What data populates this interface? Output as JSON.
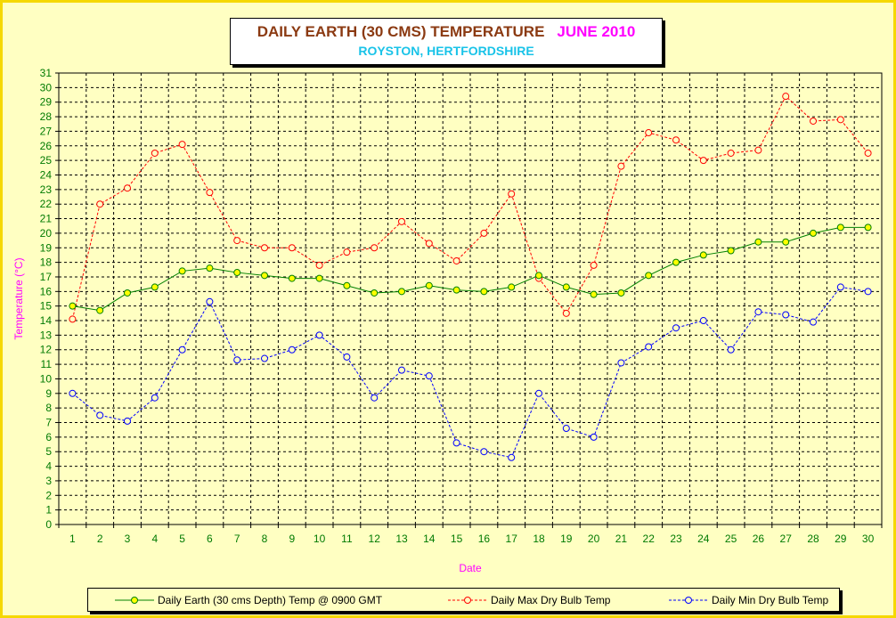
{
  "header": {
    "title": "DAILY EARTH (30 CMS) TEMPERATURE",
    "month": "JUNE 2010",
    "subtitle": "ROYSTON, HERTFORDSHIRE"
  },
  "colors": {
    "title": "#8b3a12",
    "month": "#ff00ff",
    "subtitle": "#19c3e8",
    "axis_label": "#ff00ff",
    "tick_label": "#007a00",
    "earth": "#008000",
    "earth_marker": "#ffff00",
    "max": "#ff0000",
    "min": "#0000ff",
    "frame": "#f5d800",
    "background": "#ffffc2"
  },
  "legend": {
    "earth": "Daily Earth (30 cms Depth) Temp @ 0900 GMT",
    "max": "Daily Max Dry Bulb Temp",
    "min": "Daily Min Dry Bulb Temp"
  },
  "chart_data": {
    "type": "line",
    "title": "DAILY EARTH (30 CMS) TEMPERATURE  JUNE 2010",
    "subtitle": "ROYSTON, HERTFORDSHIRE",
    "xlabel": "Date",
    "ylabel": "Temperature (°C)",
    "x": [
      1,
      2,
      3,
      4,
      5,
      6,
      7,
      8,
      9,
      10,
      11,
      12,
      13,
      14,
      15,
      16,
      17,
      18,
      19,
      20,
      21,
      22,
      23,
      24,
      25,
      26,
      27,
      28,
      29,
      30
    ],
    "ylim": [
      0,
      31
    ],
    "grid": true,
    "legend_position": "bottom",
    "series": [
      {
        "name": "Daily Earth (30 cms Depth) Temp @ 0900 GMT",
        "key": "earth",
        "values": [
          15.0,
          14.7,
          15.9,
          16.3,
          17.4,
          17.6,
          17.3,
          17.1,
          16.9,
          16.9,
          16.4,
          15.9,
          16.0,
          16.4,
          16.1,
          16.0,
          16.3,
          17.1,
          16.3,
          15.8,
          15.9,
          17.1,
          18.0,
          18.5,
          18.8,
          19.4,
          19.4,
          20.0,
          20.4,
          20.4
        ]
      },
      {
        "name": "Daily Max Dry Bulb Temp",
        "key": "max",
        "values": [
          14.1,
          22.0,
          23.1,
          25.5,
          26.1,
          22.8,
          19.5,
          19.0,
          19.0,
          17.8,
          18.7,
          19.0,
          20.8,
          19.3,
          18.1,
          20.0,
          22.7,
          16.9,
          14.5,
          17.8,
          24.6,
          26.9,
          26.4,
          25.0,
          25.5,
          25.7,
          29.4,
          27.7,
          27.8,
          25.5
        ]
      },
      {
        "name": "Daily Min Dry Bulb Temp",
        "key": "min",
        "values": [
          9.0,
          7.5,
          7.1,
          8.7,
          12.0,
          15.3,
          11.3,
          11.4,
          12.0,
          13.0,
          11.5,
          8.7,
          10.6,
          10.2,
          5.6,
          5.0,
          4.6,
          9.0,
          6.6,
          6.0,
          11.1,
          12.2,
          13.5,
          14.0,
          12.0,
          14.6,
          14.4,
          13.9,
          16.3,
          16.0
        ]
      }
    ]
  }
}
